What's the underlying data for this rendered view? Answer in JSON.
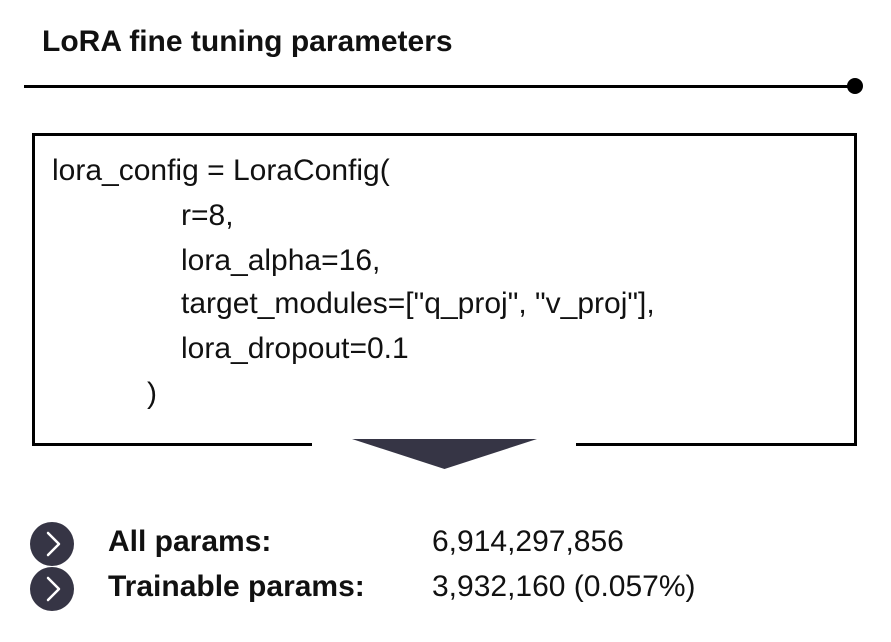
{
  "title": "LoRA fine tuning parameters",
  "code": {
    "lines": [
      "lora_config = LoraConfig(",
      "r=8,",
      "lora_alpha=16,",
      "target_modules=[\"q_proj\", \"v_proj\"],",
      "lora_dropout=0.1",
      ")"
    ]
  },
  "stats": [
    {
      "icon": "chevron-right-icon",
      "label": "All params:",
      "value": "6,914,297,856"
    },
    {
      "icon": "chevron-right-icon",
      "label": "Trainable params:",
      "value": "3,932,160 (0.057%)"
    }
  ],
  "colors": {
    "accent": "#363545",
    "text": "#111111",
    "border": "#000000"
  }
}
